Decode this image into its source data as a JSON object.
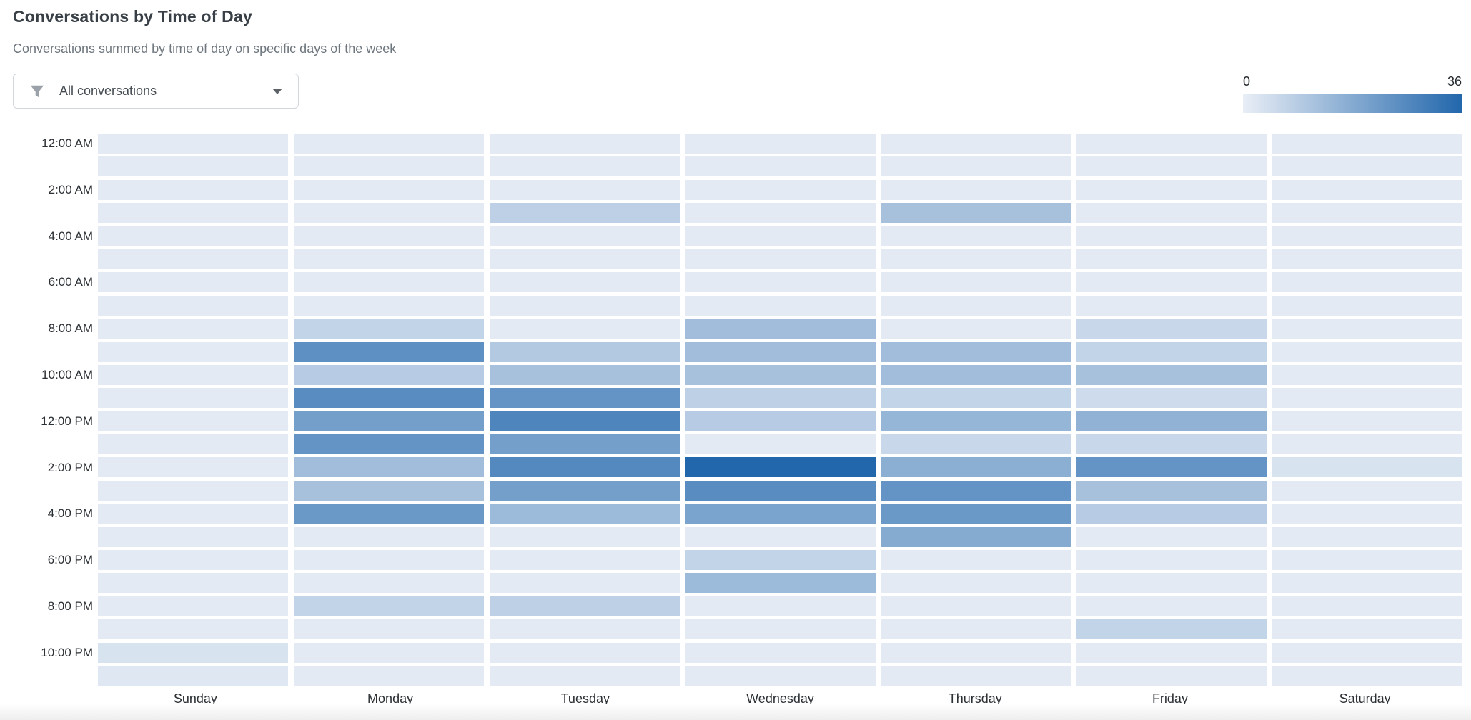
{
  "header": {
    "title": "Conversations by Time of Day",
    "subtitle": "Conversations summed by time of day on specific days of the week"
  },
  "filter": {
    "label": "All conversations",
    "icon": "funnel-icon",
    "icon_color": "#9aa1a8"
  },
  "legend": {
    "min_label": "0",
    "max_label": "36"
  },
  "chart_data": {
    "type": "heatmap",
    "title": "Conversations by Time of Day",
    "x_categories": [
      "Sunday",
      "Monday",
      "Tuesday",
      "Wednesday",
      "Thursday",
      "Friday",
      "Saturday"
    ],
    "y_categories": [
      "12:00 AM",
      "1:00 AM",
      "2:00 AM",
      "3:00 AM",
      "4:00 AM",
      "5:00 AM",
      "6:00 AM",
      "7:00 AM",
      "8:00 AM",
      "9:00 AM",
      "10:00 AM",
      "11:00 AM",
      "12:00 PM",
      "1:00 PM",
      "2:00 PM",
      "3:00 PM",
      "4:00 PM",
      "5:00 PM",
      "6:00 PM",
      "7:00 PM",
      "8:00 PM",
      "9:00 PM",
      "10:00 PM",
      "11:00 PM"
    ],
    "y_tick_labels": [
      "12:00 AM",
      "2:00 AM",
      "4:00 AM",
      "6:00 AM",
      "8:00 AM",
      "10:00 AM",
      "12:00 PM",
      "2:00 PM",
      "4:00 PM",
      "6:00 PM",
      "8:00 PM",
      "10:00 PM"
    ],
    "color_scale": {
      "min": 0,
      "max": 36,
      "min_color": "#e9eef6",
      "max_color": "#2267ac"
    },
    "legend_position": "top-right",
    "grid": false,
    "series": [
      {
        "name": "Sunday",
        "values": [
          1,
          1,
          1,
          1,
          1,
          1,
          1,
          1,
          1,
          1,
          1,
          1,
          1,
          1,
          1,
          1,
          1,
          1,
          1,
          1,
          1,
          1,
          3,
          2
        ]
      },
      {
        "name": "Monday",
        "values": [
          1,
          1,
          1,
          1,
          1,
          1,
          1,
          1,
          7,
          25,
          9,
          26,
          21,
          24,
          13,
          12,
          23,
          1,
          1,
          1,
          7,
          1,
          1,
          1
        ]
      },
      {
        "name": "Tuesday",
        "values": [
          1,
          1,
          1,
          8,
          1,
          1,
          1,
          1,
          1,
          10,
          12,
          24,
          28,
          21,
          27,
          21,
          14,
          1,
          1,
          1,
          8,
          1,
          1,
          1
        ]
      },
      {
        "name": "Wednesday",
        "values": [
          1,
          1,
          1,
          1,
          1,
          1,
          1,
          1,
          13,
          13,
          12,
          8,
          9,
          1,
          36,
          26,
          20,
          1,
          7,
          14,
          1,
          1,
          1,
          1
        ]
      },
      {
        "name": "Thursday",
        "values": [
          1,
          1,
          1,
          12,
          1,
          1,
          1,
          1,
          1,
          13,
          13,
          7,
          15,
          6,
          17,
          24,
          23,
          18,
          1,
          1,
          1,
          1,
          1,
          1
        ]
      },
      {
        "name": "Friday",
        "values": [
          1,
          1,
          1,
          1,
          1,
          1,
          1,
          1,
          6,
          7,
          12,
          5,
          16,
          6,
          24,
          12,
          9,
          1,
          1,
          1,
          1,
          7,
          1,
          1
        ]
      },
      {
        "name": "Saturday",
        "values": [
          1,
          1,
          1,
          1,
          1,
          1,
          1,
          1,
          1,
          1,
          1,
          1,
          1,
          1,
          3,
          1,
          1,
          1,
          1,
          1,
          1,
          1,
          1,
          1
        ]
      }
    ]
  }
}
